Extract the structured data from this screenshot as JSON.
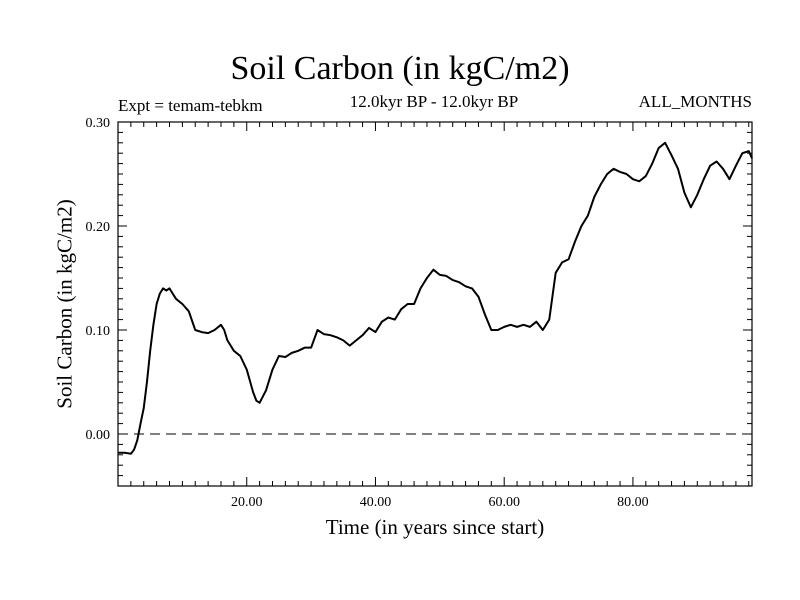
{
  "header": {
    "title": "Soil Carbon (in kgC/m2)",
    "expt": "Expt = temam-tebkm",
    "period": "12.0kyr BP - 12.0kyr BP",
    "months": "ALL_MONTHS"
  },
  "chart_data": {
    "type": "line",
    "title": "Soil Carbon (in kgC/m2)",
    "xlabel": "Time (in years since start)",
    "ylabel": "Soil Carbon (in kgC/m2)",
    "xlim": [
      0,
      98.5
    ],
    "ylim": [
      -0.05,
      0.3
    ],
    "x_ticks": [
      20,
      40,
      60,
      80
    ],
    "x_tick_labels": [
      "20.00",
      "40.00",
      "60.00",
      "80.00"
    ],
    "y_ticks": [
      0.0,
      0.1,
      0.2,
      0.3
    ],
    "y_tick_labels": [
      "0.00",
      "0.10",
      "0.20",
      "0.30"
    ],
    "reference_line": {
      "y": 0.0,
      "style": "dashed"
    },
    "grid": false,
    "series": [
      {
        "x": [
          0,
          1,
          2,
          2.5,
          3,
          3.5,
          4,
          4.5,
          5,
          5.5,
          6,
          6.5,
          7,
          7.5,
          8,
          8.5,
          9,
          10,
          11,
          12,
          13,
          14,
          15,
          16,
          16.5,
          17,
          18,
          19,
          20,
          21,
          21.5,
          22,
          23,
          24,
          25,
          26,
          27,
          28,
          29,
          30,
          31,
          32,
          33,
          34,
          35,
          36,
          37,
          38,
          39,
          40,
          41,
          42,
          43,
          44,
          45,
          46,
          47,
          48,
          49,
          50,
          51,
          52,
          53,
          54,
          55,
          56,
          57,
          58,
          59,
          60,
          61,
          62,
          63,
          64,
          65,
          66,
          67,
          68,
          69,
          70,
          71,
          72,
          73,
          74,
          75,
          76,
          77,
          78,
          79,
          80,
          81,
          82,
          83,
          84,
          85,
          86,
          87,
          88,
          89,
          90,
          91,
          92,
          93,
          94,
          95,
          96,
          97,
          98,
          98.5
        ],
        "values": [
          -0.018,
          -0.018,
          -0.019,
          -0.015,
          -0.006,
          0.01,
          0.025,
          0.05,
          0.08,
          0.105,
          0.125,
          0.135,
          0.14,
          0.138,
          0.14,
          0.135,
          0.13,
          0.125,
          0.118,
          0.1,
          0.098,
          0.097,
          0.1,
          0.105,
          0.1,
          0.09,
          0.08,
          0.075,
          0.062,
          0.04,
          0.032,
          0.03,
          0.042,
          0.062,
          0.075,
          0.074,
          0.078,
          0.08,
          0.083,
          0.083,
          0.1,
          0.096,
          0.095,
          0.093,
          0.09,
          0.085,
          0.09,
          0.095,
          0.102,
          0.098,
          0.108,
          0.112,
          0.11,
          0.12,
          0.125,
          0.125,
          0.14,
          0.15,
          0.158,
          0.153,
          0.152,
          0.148,
          0.146,
          0.142,
          0.14,
          0.132,
          0.115,
          0.1,
          0.1,
          0.103,
          0.105,
          0.103,
          0.105,
          0.103,
          0.108,
          0.1,
          0.11,
          0.155,
          0.165,
          0.168,
          0.185,
          0.2,
          0.21,
          0.228,
          0.24,
          0.25,
          0.255,
          0.252,
          0.25,
          0.245,
          0.243,
          0.248,
          0.26,
          0.275,
          0.28,
          0.268,
          0.255,
          0.232,
          0.218,
          0.23,
          0.245,
          0.258,
          0.262,
          0.255,
          0.245,
          0.258,
          0.27,
          0.272,
          0.265
        ]
      }
    ]
  }
}
